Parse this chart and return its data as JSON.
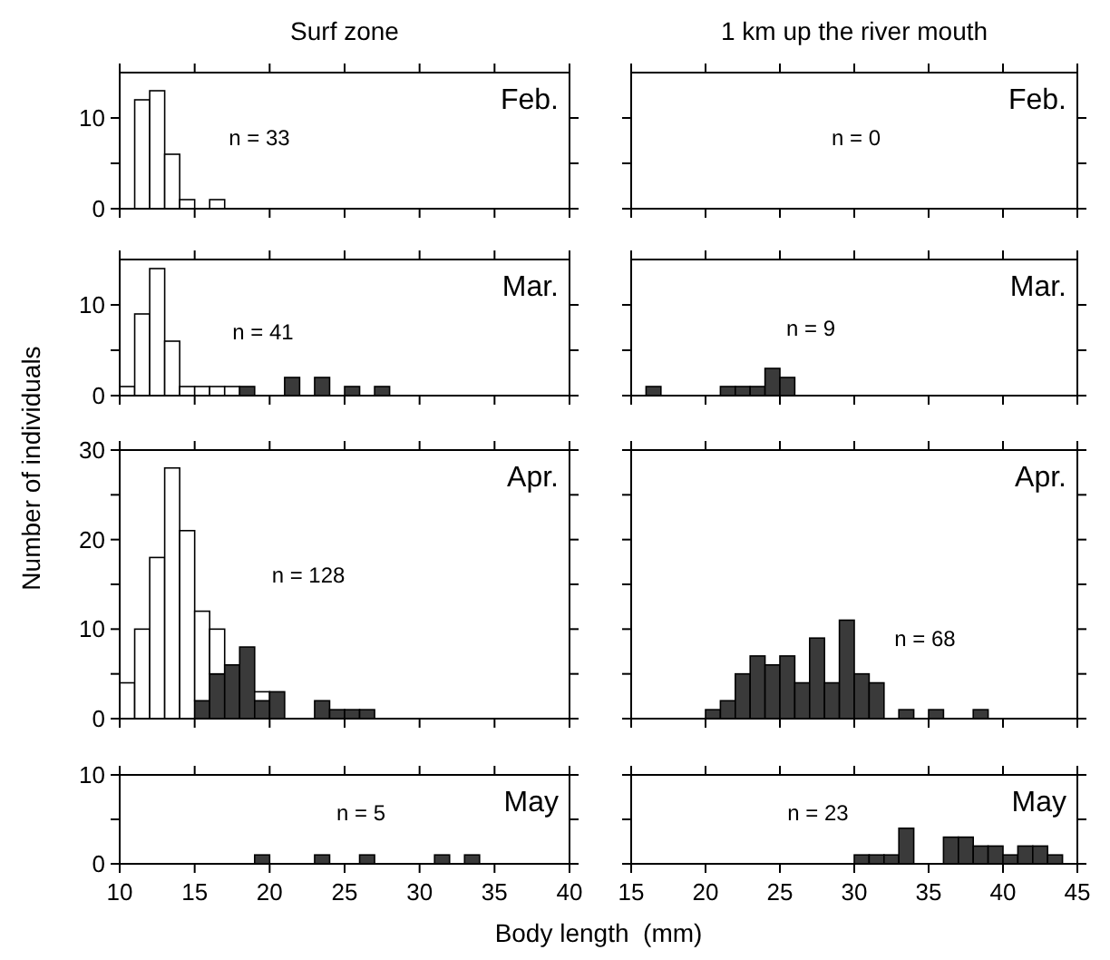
{
  "chart_data": [
    {
      "type": "histogram",
      "title": "Surf zone",
      "bins": [
        10,
        11,
        12,
        13,
        14,
        15,
        16,
        17,
        18,
        19,
        20,
        21,
        22,
        23,
        24,
        25,
        26,
        27,
        28,
        29,
        30,
        31,
        32,
        33,
        34,
        35,
        36,
        37,
        38,
        39,
        40
      ],
      "stacked": true,
      "xlim": [
        10,
        40
      ],
      "xticks": [
        10,
        15,
        20,
        25,
        30,
        35,
        40
      ],
      "ylim": [
        0,
        15
      ],
      "yticks": [
        0,
        {
          "value": 5,
          "label": null
        },
        10
      ],
      "tick_labels": "y",
      "annotations": [
        "Feb.",
        "n = 33"
      ],
      "series": [
        {
          "color": "#ffffff",
          "values": [
            0,
            12,
            13,
            6,
            1,
            0,
            1,
            0,
            0,
            0,
            0,
            0,
            0,
            0,
            0,
            0,
            0,
            0,
            0,
            0,
            0,
            0,
            0,
            0,
            0,
            0,
            0,
            0,
            0,
            0
          ]
        }
      ]
    },
    {
      "type": "histogram",
      "title": "1 km up the river mouth",
      "xlim": [
        15,
        45
      ],
      "xticks": [
        15,
        20,
        25,
        30,
        35,
        40,
        45
      ],
      "ylim": [
        0,
        15
      ],
      "yticks": [
        0,
        {
          "value": 5,
          "label": null
        },
        10
      ],
      "tick_labels": false,
      "annotations": [
        "Feb.",
        "n = 0"
      ]
    },
    {
      "type": "bar",
      "ylabel": "Number of individuals",
      "x": [
        10.5,
        11.5,
        12.5,
        13.5,
        14.5,
        15.5,
        16.5,
        17.5,
        18.5,
        19.5,
        20.5,
        21.5,
        22.5,
        23.5,
        24.5,
        25.5,
        26.5,
        27.5,
        28.5,
        29.5,
        30.5,
        31.5,
        32.5,
        33.5,
        34.5,
        35.5,
        36.5,
        37.5,
        38.5,
        39.5
      ],
      "stacked": true,
      "xlim": [
        10,
        40
      ],
      "xticks": [
        10,
        15,
        20,
        25,
        30,
        35,
        40
      ],
      "ylim": [
        0,
        15
      ],
      "yticks": [
        0,
        {
          "value": 5,
          "label": null
        },
        10
      ],
      "tick_labels": "y",
      "annotations": [
        "Mar.",
        "n = 41"
      ],
      "series": [
        {
          "color": "#3a3a3a",
          "values": [
            0,
            0,
            0,
            0,
            0,
            0,
            0,
            0,
            1,
            0,
            0,
            2,
            0,
            2,
            0,
            1,
            0,
            1,
            0,
            0,
            0,
            0,
            0,
            0,
            0,
            0,
            0,
            0,
            0,
            0
          ]
        },
        {
          "color": "#ffffff",
          "values": [
            1,
            9,
            14,
            6,
            1,
            1,
            1,
            1,
            0,
            0,
            0,
            0,
            0,
            0,
            0,
            0,
            0,
            0,
            0,
            0,
            0,
            0,
            0,
            0,
            0,
            0,
            0,
            0,
            0,
            0
          ]
        }
      ]
    },
    {
      "type": "histogram",
      "bins": [
        15,
        16,
        17,
        18,
        19,
        20,
        21,
        22,
        23,
        24,
        25,
        26,
        27,
        28,
        29,
        30,
        31,
        32,
        33,
        34,
        35,
        36,
        37,
        38,
        39,
        40,
        41,
        42,
        43,
        44,
        45
      ],
      "stacked": true,
      "xlim": [
        15,
        45
      ],
      "xticks": [
        15,
        20,
        25,
        30,
        35,
        40,
        45
      ],
      "ylim": [
        0,
        15
      ],
      "yticks": [
        0,
        {
          "value": 5,
          "label": null
        },
        10
      ],
      "tick_labels": false,
      "annotations": [
        "Mar.",
        "n = 9"
      ],
      "series": [
        {
          "color": "#3a3a3a",
          "values": [
            0,
            1,
            0,
            0,
            0,
            0,
            1,
            1,
            1,
            3,
            2,
            0,
            0,
            0,
            0,
            0,
            0,
            0,
            0,
            0,
            0,
            0,
            0,
            0,
            0,
            0,
            0,
            0,
            0,
            0
          ]
        }
      ]
    },
    {
      "type": "bar",
      "x": [
        10.5,
        11.5,
        12.5,
        13.5,
        14.5,
        15.5,
        16.5,
        17.5,
        18.5,
        19.5,
        20.5,
        21.5,
        22.5,
        23.5,
        24.5,
        25.5,
        26.5,
        27.5,
        28.5,
        29.5,
        30.5,
        31.5,
        32.5,
        33.5,
        34.5,
        35.5,
        36.5,
        37.5,
        38.5,
        39.5
      ],
      "stacked": true,
      "xlim": [
        10,
        40
      ],
      "xticks": [
        10,
        15,
        20,
        25,
        30,
        35,
        40
      ],
      "ylim": [
        0,
        30
      ],
      "yticks": [
        0,
        {
          "value": 5,
          "label": null
        },
        10,
        {
          "value": 15,
          "label": null
        },
        20,
        {
          "value": 25,
          "label": null
        },
        30
      ],
      "tick_labels": "y",
      "annotations": [
        "Apr.",
        "n = 128"
      ],
      "series": [
        {
          "color": "#3a3a3a",
          "values": [
            0,
            0,
            0,
            0,
            0,
            2,
            5,
            6,
            8,
            2,
            3,
            0,
            0,
            2,
            1,
            1,
            1,
            0,
            0,
            0,
            0,
            0,
            0,
            0,
            0,
            0,
            0,
            0,
            0,
            0
          ]
        },
        {
          "color": "#ffffff",
          "values": [
            4,
            10,
            18,
            28,
            21,
            10,
            5,
            0,
            0,
            1,
            0,
            0,
            0,
            0,
            0,
            0,
            0,
            0,
            0,
            0,
            0,
            0,
            0,
            0,
            0,
            0,
            0,
            0,
            0,
            0
          ]
        }
      ]
    },
    {
      "type": "histogram",
      "bins": [
        15,
        16,
        17,
        18,
        19,
        20,
        21,
        22,
        23,
        24,
        25,
        26,
        27,
        28,
        29,
        30,
        31,
        32,
        33,
        34,
        35,
        36,
        37,
        38,
        39,
        40,
        41,
        42,
        43,
        44,
        45
      ],
      "stacked": true,
      "xlim": [
        15,
        45
      ],
      "xticks": [
        15,
        20,
        25,
        30,
        35,
        40,
        45
      ],
      "ylim": [
        0,
        30
      ],
      "yticks": [
        0,
        {
          "value": 5,
          "label": null
        },
        10,
        {
          "value": 15,
          "label": null
        },
        20,
        {
          "value": 25,
          "label": null
        },
        30
      ],
      "tick_labels": false,
      "annotations": [
        "Apr.",
        "n = 68"
      ],
      "series": [
        {
          "color": "#3a3a3a",
          "values": [
            0,
            0,
            0,
            0,
            0,
            1,
            2,
            5,
            7,
            6,
            7,
            4,
            9,
            4,
            11,
            5,
            4,
            0,
            1,
            0,
            1,
            0,
            0,
            1,
            0,
            0,
            0,
            0,
            0,
            0
          ]
        }
      ]
    },
    {
      "type": "histogram",
      "xlabel": "Body length  (mm)",
      "bins": [
        10,
        11,
        12,
        13,
        14,
        15,
        16,
        17,
        18,
        19,
        20,
        21,
        22,
        23,
        24,
        25,
        26,
        27,
        28,
        29,
        30,
        31,
        32,
        33,
        34,
        35,
        36,
        37,
        38,
        39,
        40
      ],
      "stacked": true,
      "xlim": [
        10,
        40
      ],
      "xticks": [
        10,
        15,
        20,
        25,
        30,
        35,
        40
      ],
      "ylim": [
        0,
        10
      ],
      "yticks": [
        0,
        {
          "value": 5,
          "label": null
        },
        10
      ],
      "annotations": [
        "May",
        "n = 5"
      ],
      "series": [
        {
          "color": "#3a3a3a",
          "values": [
            0,
            0,
            0,
            0,
            0,
            0,
            0,
            0,
            0,
            1,
            0,
            0,
            0,
            1,
            0,
            0,
            1,
            0,
            0,
            0,
            0,
            1,
            0,
            1,
            0,
            0,
            0,
            0,
            0,
            0
          ]
        }
      ]
    },
    {
      "type": "histogram",
      "bins": [
        15,
        16,
        17,
        18,
        19,
        20,
        21,
        22,
        23,
        24,
        25,
        26,
        27,
        28,
        29,
        30,
        31,
        32,
        33,
        34,
        35,
        36,
        37,
        38,
        39,
        40,
        41,
        42,
        43,
        44,
        45
      ],
      "stacked": true,
      "xlim": [
        15,
        45
      ],
      "xticks": [
        15,
        20,
        25,
        30,
        35,
        40,
        45
      ],
      "ylim": [
        0,
        10
      ],
      "yticks": [
        0,
        {
          "value": 5,
          "label": null
        },
        10
      ],
      "tick_labels": "x",
      "annotations": [
        "May",
        "n = 23"
      ],
      "series": [
        {
          "color": "#3a3a3a",
          "values": [
            0,
            0,
            0,
            0,
            0,
            0,
            0,
            0,
            0,
            0,
            0,
            0,
            0,
            0,
            0,
            1,
            1,
            1,
            4,
            0,
            0,
            3,
            3,
            2,
            2,
            1,
            2,
            2,
            1,
            0
          ]
        }
      ]
    }
  ]
}
